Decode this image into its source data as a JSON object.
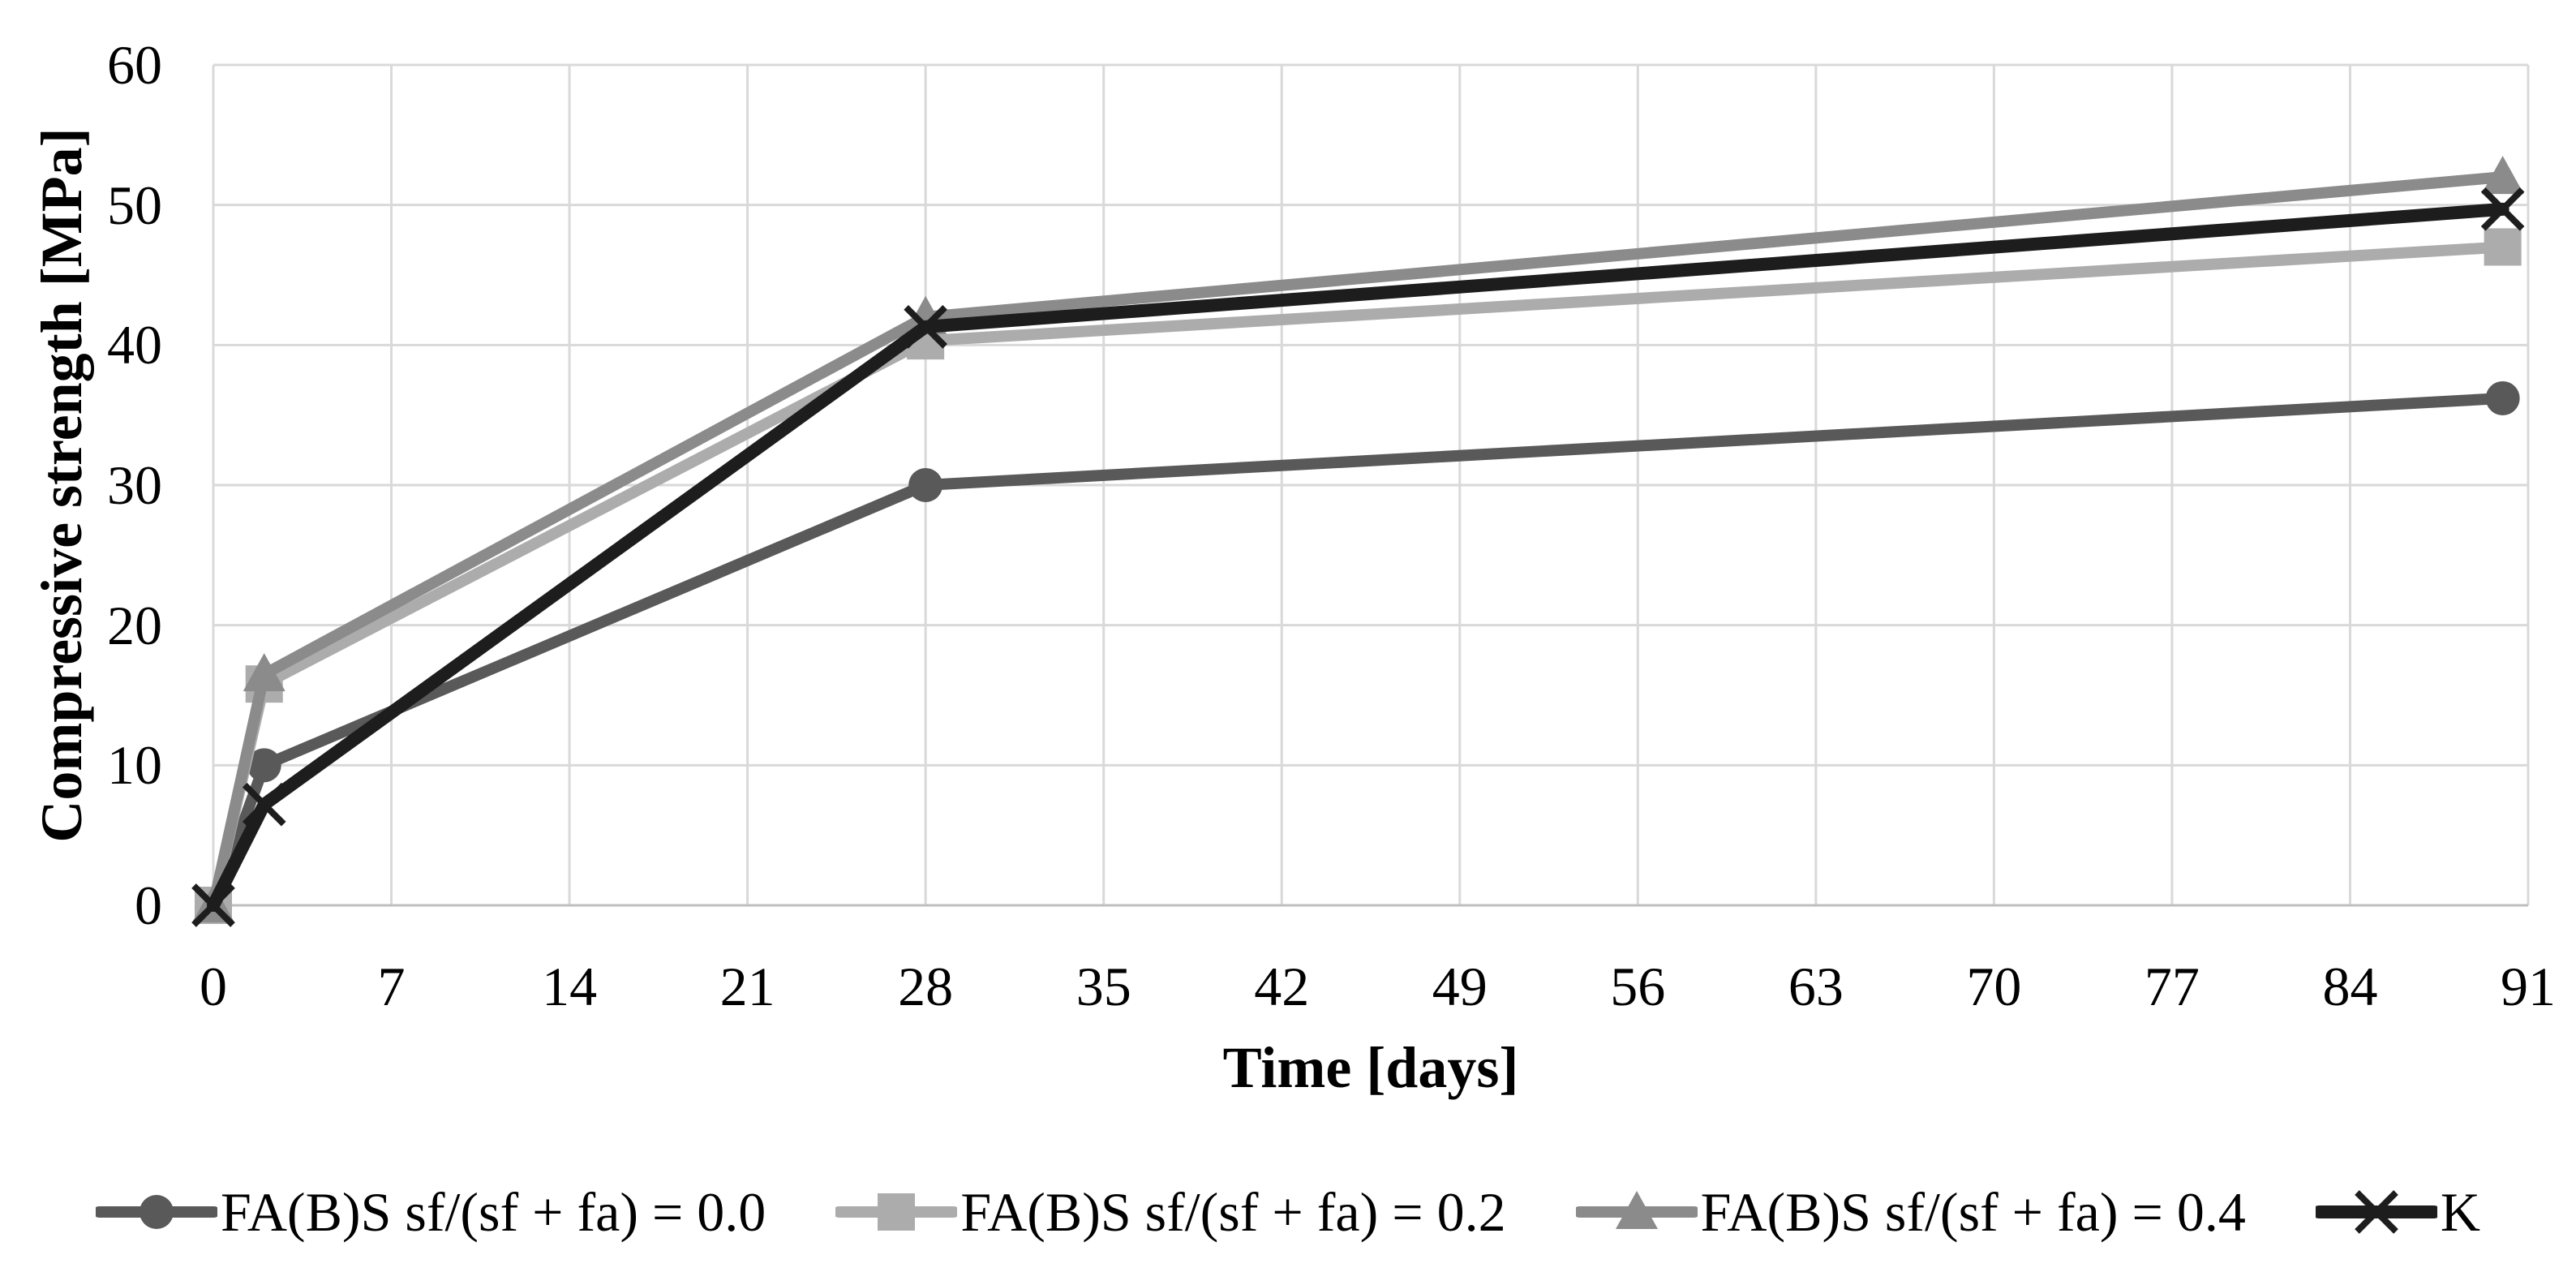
{
  "chart_data": {
    "type": "line",
    "title": "",
    "xlabel": "Time [days]",
    "ylabel": "Compressive strength [MPa]",
    "x": [
      0,
      2,
      28,
      90
    ],
    "xlim": [
      0,
      91
    ],
    "ylim": [
      0,
      60
    ],
    "x_ticks": [
      0,
      7,
      14,
      21,
      28,
      35,
      42,
      49,
      56,
      63,
      70,
      77,
      84,
      91
    ],
    "y_ticks": [
      0,
      10,
      20,
      30,
      40,
      50,
      60
    ],
    "grid": true,
    "legend_position": "bottom",
    "series": [
      {
        "name": "FA(B)S sf/(sf + fa) = 0.0",
        "marker": "circle",
        "color": "#595959",
        "values": [
          0,
          10,
          30,
          36.2
        ]
      },
      {
        "name": "FA(B)S sf/(sf + fa) = 0.2",
        "marker": "square",
        "color": "#acacac",
        "values": [
          0,
          15.8,
          40.3,
          47
        ]
      },
      {
        "name": "FA(B)S sf/(sf + fa) = 0.4",
        "marker": "triangle",
        "color": "#8b8b8b",
        "values": [
          0,
          16.5,
          42,
          52
        ]
      },
      {
        "name": "K",
        "marker": "x",
        "color": "#1d1d1d",
        "values": [
          0,
          7.2,
          41.3,
          49.7
        ]
      }
    ],
    "colors": {
      "gridline": "#d9d9d9",
      "axis_line": "#bfbfbf",
      "text": "#000000",
      "background": "#ffffff"
    }
  }
}
